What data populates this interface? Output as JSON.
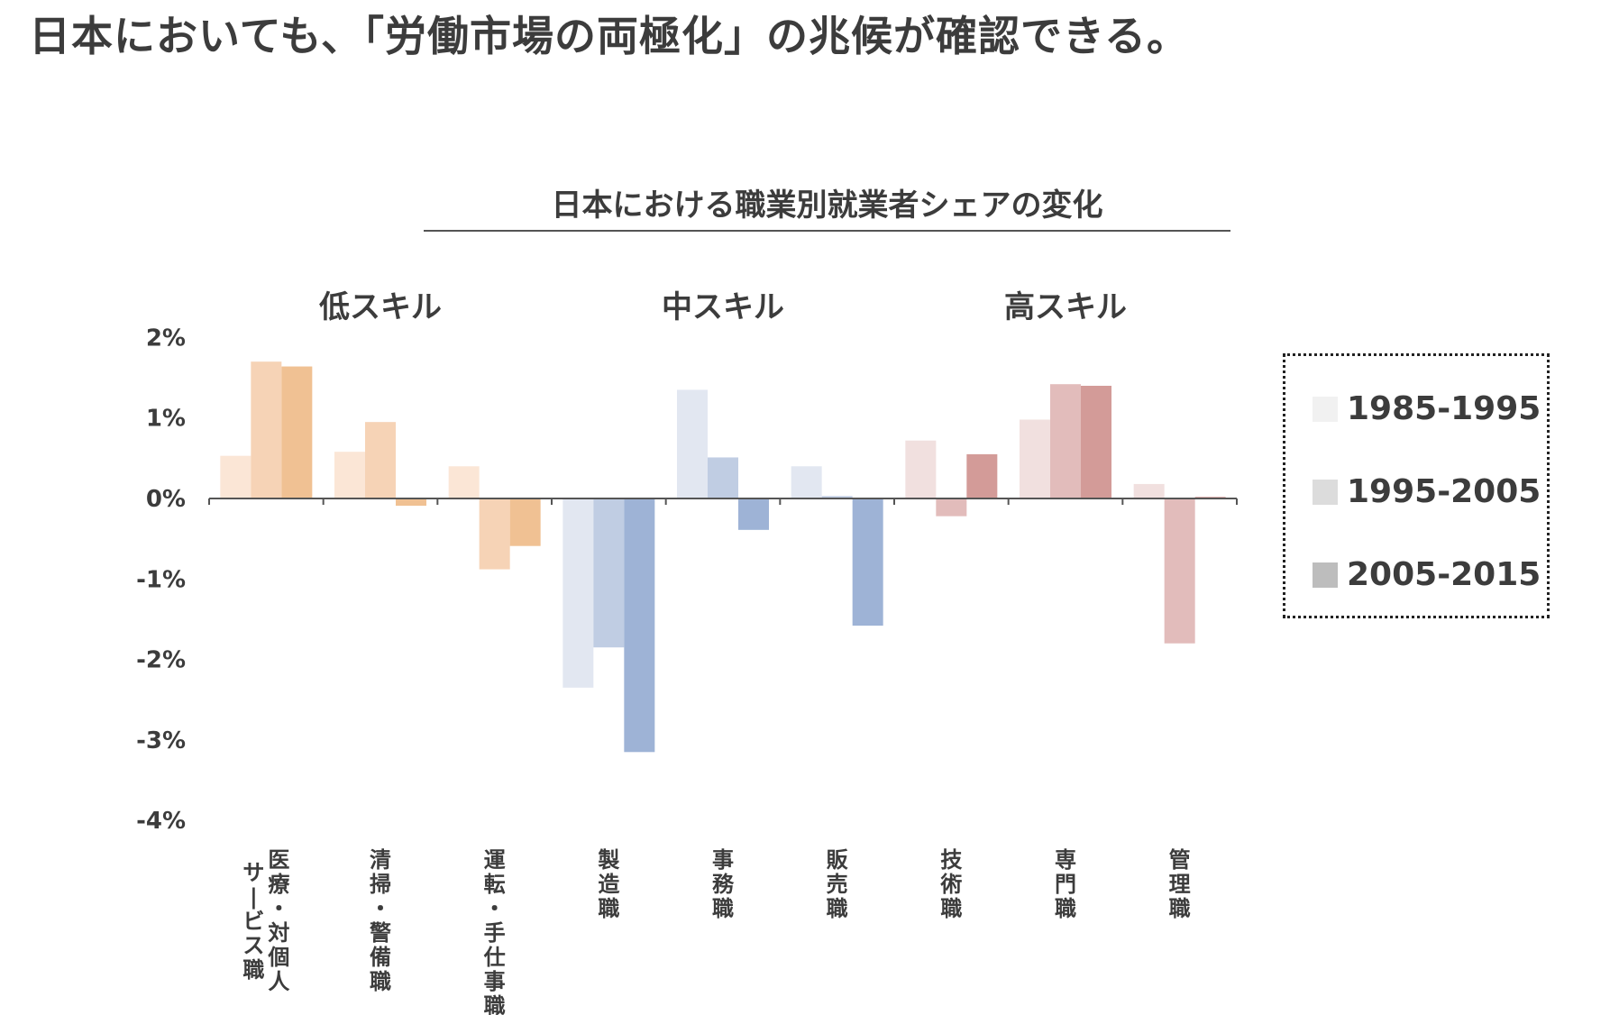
{
  "headline": "日本においても、「労働市場の両極化」の兆候が確認できる。",
  "chart_data": {
    "type": "bar",
    "title": "日本における職業別就業者シェアの変化",
    "xlabel": "",
    "ylabel": "",
    "ylim": [
      -4,
      2
    ],
    "yticks": [
      "2%",
      "1%",
      "0%",
      "-1%",
      "-2%",
      "-3%",
      "-4%"
    ],
    "skill_groups": [
      {
        "label": "低スキル",
        "categories": [
          0,
          1,
          2
        ]
      },
      {
        "label": "中スキル",
        "categories": [
          3,
          4,
          5
        ]
      },
      {
        "label": "高スキル",
        "categories": [
          6,
          7,
          8
        ]
      }
    ],
    "categories": [
      "サービス職 医療・対個人",
      "清掃・警備職",
      "運転・手仕事職",
      "製造職",
      "事務職",
      "販売職",
      "技術職",
      "専門職",
      "管理職"
    ],
    "category_label_columns": [
      [
        "医療・対個人",
        "サービス職"
      ],
      [
        "清掃・警備職"
      ],
      [
        "運転・手仕事職"
      ],
      [
        "製造職"
      ],
      [
        "事務職"
      ],
      [
        "販売職"
      ],
      [
        "技術職"
      ],
      [
        "専門職"
      ],
      [
        "管理職"
      ]
    ],
    "series": [
      {
        "name": "1985-1995",
        "values": [
          0.53,
          0.58,
          0.4,
          -2.35,
          1.35,
          0.4,
          0.72,
          0.98,
          0.18
        ]
      },
      {
        "name": "1995-2005",
        "values": [
          1.7,
          0.95,
          -0.88,
          -1.85,
          0.51,
          0.03,
          -0.22,
          1.42,
          -1.8
        ]
      },
      {
        "name": "2005-2015",
        "values": [
          1.64,
          -0.09,
          -0.59,
          -3.15,
          -0.39,
          -1.58,
          0.55,
          1.4,
          0.02
        ]
      }
    ],
    "bar_colors": [
      [
        "#fbe6d6",
        "#f6d3b6",
        "#f0c193"
      ],
      [
        "#fbe6d6",
        "#f6d3b6",
        "#f0c193"
      ],
      [
        "#fbe6d6",
        "#f6d3b6",
        "#f0c193"
      ],
      [
        "#e2e7f1",
        "#c0cde3",
        "#9eb3d6"
      ],
      [
        "#e2e7f1",
        "#c0cde3",
        "#9eb3d6"
      ],
      [
        "#e2e7f1",
        "#c0cde3",
        "#9eb3d6"
      ],
      [
        "#f1e0df",
        "#e2bcbb",
        "#d39b98"
      ],
      [
        "#f1e0df",
        "#e2bcbb",
        "#d39b98"
      ],
      [
        "#f1e0df",
        "#e2bcbb",
        "#d39b98"
      ]
    ],
    "legend": {
      "position": "right",
      "items": [
        {
          "label": "1985-1995",
          "color": "#f1f1f1"
        },
        {
          "label": "1995-2005",
          "color": "#dcdcdc"
        },
        {
          "label": "2005-2015",
          "color": "#bdbdbd"
        }
      ]
    },
    "grid": false
  }
}
